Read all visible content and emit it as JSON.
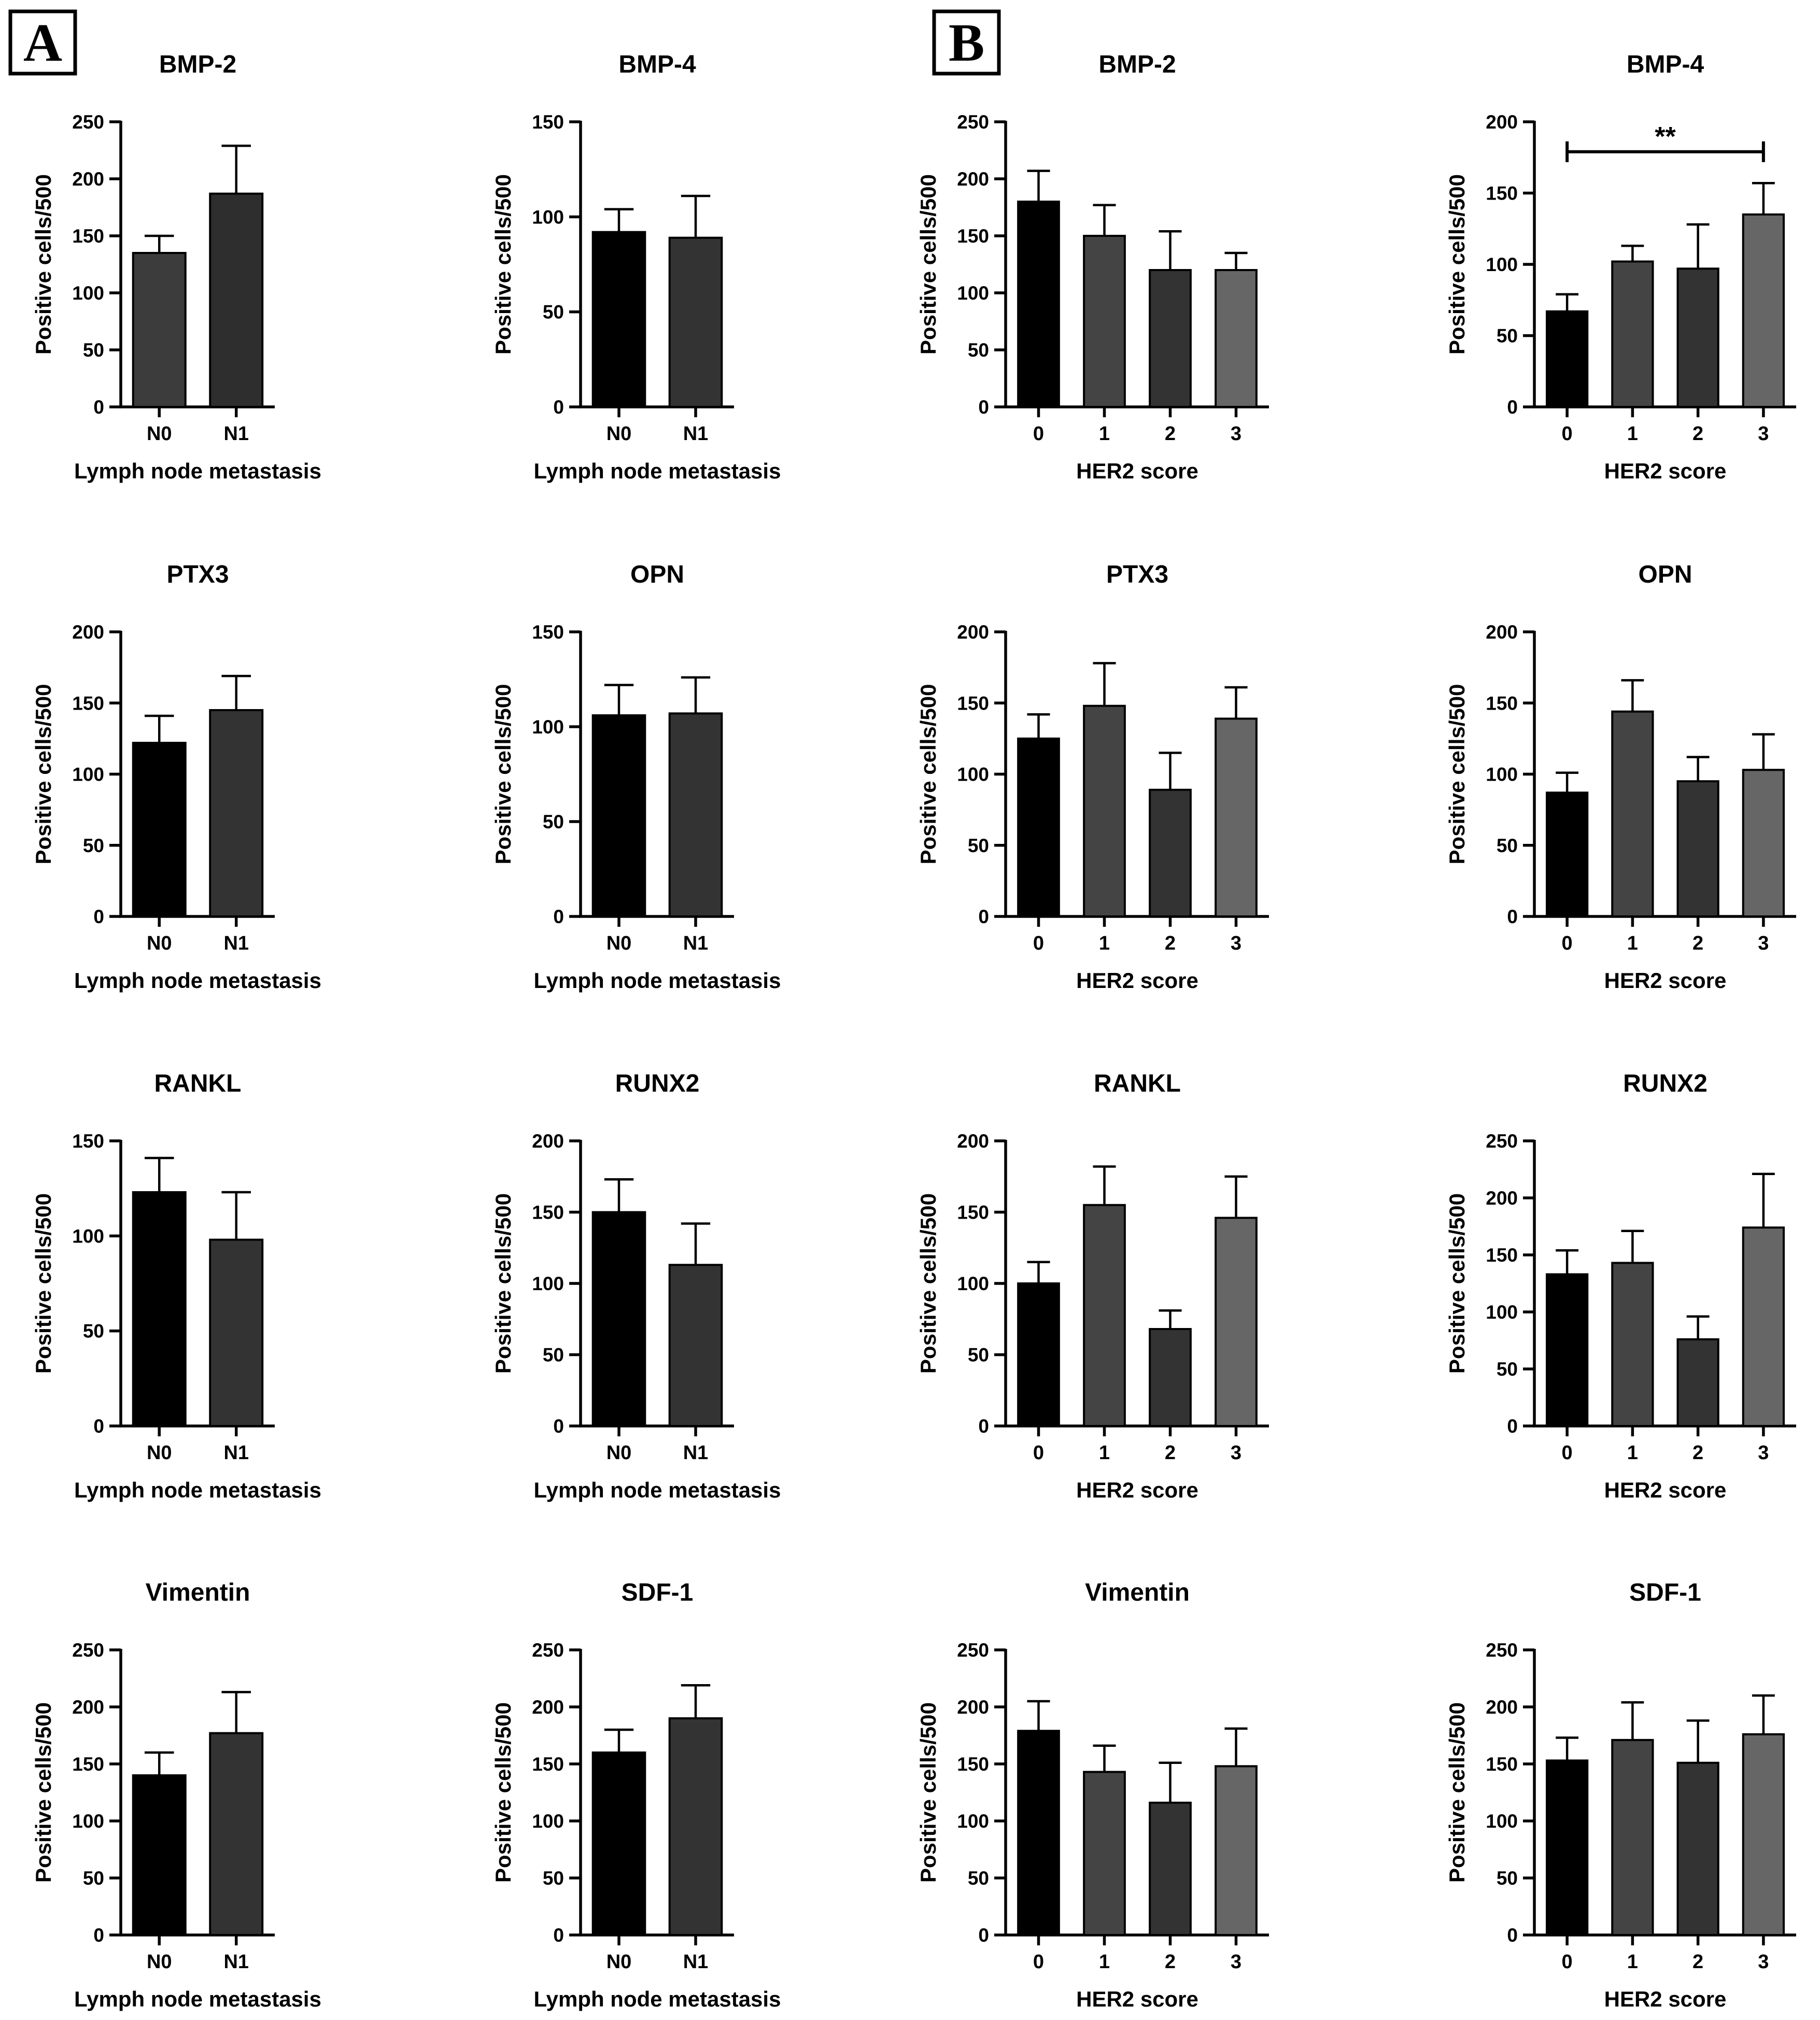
{
  "panels": [
    {
      "letter": "A"
    },
    {
      "letter": "B"
    }
  ],
  "colors": {
    "cat0": "#000000",
    "cat1": "#444444",
    "cat2": "#333333",
    "cat3": "#666666",
    "N0": "#000000",
    "N1": "#333333",
    "BMP2_N0": "#3c3c3c",
    "BMP2_N1": "#2e2e2e"
  },
  "chart_data": [
    {
      "type": "bar",
      "title": "BMP-2",
      "xlabel": "Lymph node metastasis",
      "ylabel": "Positive cells/500",
      "ylim": [
        0,
        250
      ],
      "yticks": [
        0,
        50,
        100,
        150,
        200,
        250
      ],
      "categories": [
        "N0",
        "N1"
      ],
      "values": [
        135,
        187
      ],
      "errors": [
        15,
        42
      ],
      "colors": [
        "BMP2_N0",
        "BMP2_N1"
      ],
      "significance": null
    },
    {
      "type": "bar",
      "title": "BMP-4",
      "xlabel": "Lymph node metastasis",
      "ylabel": "Positive cells/500",
      "ylim": [
        0,
        150
      ],
      "yticks": [
        0,
        50,
        100,
        150
      ],
      "categories": [
        "N0",
        "N1"
      ],
      "values": [
        92,
        89
      ],
      "errors": [
        12,
        22
      ],
      "colors": [
        "N0",
        "N1"
      ],
      "significance": null
    },
    {
      "type": "bar",
      "title": "BMP-2",
      "xlabel": "HER2 score",
      "ylabel": "Positive cells/500",
      "ylim": [
        0,
        250
      ],
      "yticks": [
        0,
        50,
        100,
        150,
        200,
        250
      ],
      "categories": [
        "0",
        "1",
        "2",
        "3"
      ],
      "values": [
        180,
        150,
        120,
        120
      ],
      "errors": [
        27,
        27,
        34,
        15
      ],
      "colors": [
        "cat0",
        "cat1",
        "cat2",
        "cat3"
      ],
      "significance": null
    },
    {
      "type": "bar",
      "title": "BMP-4",
      "xlabel": "HER2 score",
      "ylabel": "Positive cells/500",
      "ylim": [
        0,
        200
      ],
      "yticks": [
        0,
        50,
        100,
        150,
        200
      ],
      "categories": [
        "0",
        "1",
        "2",
        "3"
      ],
      "values": [
        67,
        102,
        97,
        135
      ],
      "errors": [
        12,
        11,
        31,
        22
      ],
      "colors": [
        "cat0",
        "cat1",
        "cat2",
        "cat3"
      ],
      "significance": {
        "from": 0,
        "to": 3,
        "label": "**",
        "y": 179
      }
    },
    {
      "type": "bar",
      "title": "PTX3",
      "xlabel": "Lymph node metastasis",
      "ylabel": "Positive cells/500",
      "ylim": [
        0,
        200
      ],
      "yticks": [
        0,
        50,
        100,
        150,
        200
      ],
      "categories": [
        "N0",
        "N1"
      ],
      "values": [
        122,
        145
      ],
      "errors": [
        19,
        24
      ],
      "colors": [
        "N0",
        "N1"
      ],
      "significance": null
    },
    {
      "type": "bar",
      "title": "OPN",
      "xlabel": "Lymph node metastasis",
      "ylabel": "Positive cells/500",
      "ylim": [
        0,
        150
      ],
      "yticks": [
        0,
        50,
        100,
        150
      ],
      "categories": [
        "N0",
        "N1"
      ],
      "values": [
        106,
        107
      ],
      "errors": [
        16,
        19
      ],
      "colors": [
        "N0",
        "N1"
      ],
      "significance": null
    },
    {
      "type": "bar",
      "title": "PTX3",
      "xlabel": "HER2 score",
      "ylabel": "Positive cells/500",
      "ylim": [
        0,
        200
      ],
      "yticks": [
        0,
        50,
        100,
        150,
        200
      ],
      "categories": [
        "0",
        "1",
        "2",
        "3"
      ],
      "values": [
        125,
        148,
        89,
        139
      ],
      "errors": [
        17,
        30,
        26,
        22
      ],
      "colors": [
        "cat0",
        "cat1",
        "cat2",
        "cat3"
      ],
      "significance": null
    },
    {
      "type": "bar",
      "title": "OPN",
      "xlabel": "HER2 score",
      "ylabel": "Positive cells/500",
      "ylim": [
        0,
        200
      ],
      "yticks": [
        0,
        50,
        100,
        150,
        200
      ],
      "categories": [
        "0",
        "1",
        "2",
        "3"
      ],
      "values": [
        87,
        144,
        95,
        103
      ],
      "errors": [
        14,
        22,
        17,
        25
      ],
      "colors": [
        "cat0",
        "cat1",
        "cat2",
        "cat3"
      ],
      "significance": null
    },
    {
      "type": "bar",
      "title": "RANKL",
      "xlabel": "Lymph node metastasis",
      "ylabel": "Positive cells/500",
      "ylim": [
        0,
        150
      ],
      "yticks": [
        0,
        50,
        100,
        150
      ],
      "categories": [
        "N0",
        "N1"
      ],
      "values": [
        123,
        98
      ],
      "errors": [
        18,
        25
      ],
      "colors": [
        "N0",
        "N1"
      ],
      "significance": null
    },
    {
      "type": "bar",
      "title": "RUNX2",
      "xlabel": "Lymph node metastasis",
      "ylabel": "Positive cells/500",
      "ylim": [
        0,
        200
      ],
      "yticks": [
        0,
        50,
        100,
        150,
        200
      ],
      "categories": [
        "N0",
        "N1"
      ],
      "values": [
        150,
        113
      ],
      "errors": [
        23,
        29
      ],
      "colors": [
        "N0",
        "N1"
      ],
      "significance": null
    },
    {
      "type": "bar",
      "title": "RANKL",
      "xlabel": "HER2 score",
      "ylabel": "Positive cells/500",
      "ylim": [
        0,
        200
      ],
      "yticks": [
        0,
        50,
        100,
        150,
        200
      ],
      "categories": [
        "0",
        "1",
        "2",
        "3"
      ],
      "values": [
        100,
        155,
        68,
        146
      ],
      "errors": [
        15,
        27,
        13,
        29
      ],
      "colors": [
        "cat0",
        "cat1",
        "cat2",
        "cat3"
      ],
      "significance": null
    },
    {
      "type": "bar",
      "title": "RUNX2",
      "xlabel": "HER2 score",
      "ylabel": "Positive cells/500",
      "ylim": [
        0,
        250
      ],
      "yticks": [
        0,
        50,
        100,
        150,
        200,
        250
      ],
      "categories": [
        "0",
        "1",
        "2",
        "3"
      ],
      "values": [
        133,
        143,
        76,
        174
      ],
      "errors": [
        21,
        28,
        20,
        47
      ],
      "colors": [
        "cat0",
        "cat1",
        "cat2",
        "cat3"
      ],
      "significance": null
    },
    {
      "type": "bar",
      "title": "Vimentin",
      "xlabel": "Lymph node metastasis",
      "ylabel": "Positive cells/500",
      "ylim": [
        0,
        250
      ],
      "yticks": [
        0,
        50,
        100,
        150,
        200,
        250
      ],
      "categories": [
        "N0",
        "N1"
      ],
      "values": [
        140,
        177
      ],
      "errors": [
        20,
        36
      ],
      "colors": [
        "N0",
        "N1"
      ],
      "significance": null
    },
    {
      "type": "bar",
      "title": "SDF-1",
      "xlabel": "Lymph node metastasis",
      "ylabel": "Positive cells/500",
      "ylim": [
        0,
        250
      ],
      "yticks": [
        0,
        50,
        100,
        150,
        200,
        250
      ],
      "categories": [
        "N0",
        "N1"
      ],
      "values": [
        160,
        190
      ],
      "errors": [
        20,
        29
      ],
      "colors": [
        "N0",
        "N1"
      ],
      "significance": null
    },
    {
      "type": "bar",
      "title": "Vimentin",
      "xlabel": "HER2 score",
      "ylabel": "Positive cells/500",
      "ylim": [
        0,
        250
      ],
      "yticks": [
        0,
        50,
        100,
        150,
        200,
        250
      ],
      "categories": [
        "0",
        "1",
        "2",
        "3"
      ],
      "values": [
        179,
        143,
        116,
        148
      ],
      "errors": [
        26,
        23,
        35,
        33
      ],
      "colors": [
        "cat0",
        "cat1",
        "cat2",
        "cat3"
      ],
      "significance": null
    },
    {
      "type": "bar",
      "title": "SDF-1",
      "xlabel": "HER2 score",
      "ylabel": "Positive cells/500",
      "ylim": [
        0,
        250
      ],
      "yticks": [
        0,
        50,
        100,
        150,
        200,
        250
      ],
      "categories": [
        "0",
        "1",
        "2",
        "3"
      ],
      "values": [
        153,
        171,
        151,
        176
      ],
      "errors": [
        20,
        33,
        37,
        34
      ],
      "colors": [
        "cat0",
        "cat1",
        "cat2",
        "cat3"
      ],
      "significance": null
    }
  ]
}
